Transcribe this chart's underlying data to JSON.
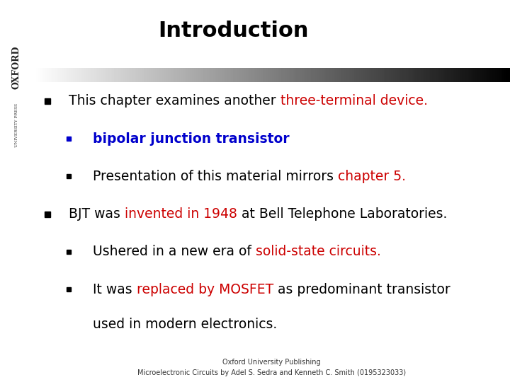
{
  "title": "Introduction",
  "title_fontsize": 22,
  "title_fontweight": "bold",
  "background_color": "#ffffff",
  "footer_line1": "Oxford University Publishing",
  "footer_line2": "Microelectronic Circuits by Adel S. Sedra and Kenneth C. Smith (0195323033)",
  "footer_fontsize": 7,
  "red_color": "#cc0000",
  "blue_color": "#0000cc",
  "black_color": "#000000",
  "bullet_lines": [
    {
      "indent": 0,
      "parts": [
        {
          "text": "This chapter examines another ",
          "color": "#000000",
          "bold": false
        },
        {
          "text": "three-terminal device.",
          "color": "#cc0000",
          "bold": false
        }
      ]
    },
    {
      "indent": 1,
      "parts": [
        {
          "text": "bipolar junction transistor",
          "color": "#0000cc",
          "bold": true
        }
      ]
    },
    {
      "indent": 1,
      "parts": [
        {
          "text": "Presentation of this material mirrors ",
          "color": "#000000",
          "bold": false
        },
        {
          "text": "chapter 5.",
          "color": "#cc0000",
          "bold": false
        }
      ]
    },
    {
      "indent": 0,
      "parts": [
        {
          "text": "BJT was ",
          "color": "#000000",
          "bold": false
        },
        {
          "text": "invented in 1948",
          "color": "#cc0000",
          "bold": false
        },
        {
          "text": " at Bell Telephone Laboratories.",
          "color": "#000000",
          "bold": false
        }
      ]
    },
    {
      "indent": 1,
      "parts": [
        {
          "text": "Ushered in a new era of ",
          "color": "#000000",
          "bold": false
        },
        {
          "text": "solid-state circuits.",
          "color": "#cc0000",
          "bold": false
        }
      ]
    },
    {
      "indent": 1,
      "parts": [
        {
          "text": "It was ",
          "color": "#000000",
          "bold": false
        },
        {
          "text": "replaced by MOSFET",
          "color": "#cc0000",
          "bold": false
        },
        {
          "text": " as predominant transistor",
          "color": "#000000",
          "bold": false
        }
      ]
    },
    {
      "indent": 2,
      "parts": [
        {
          "text": "used in modern electronics.",
          "color": "#000000",
          "bold": false
        }
      ]
    }
  ]
}
